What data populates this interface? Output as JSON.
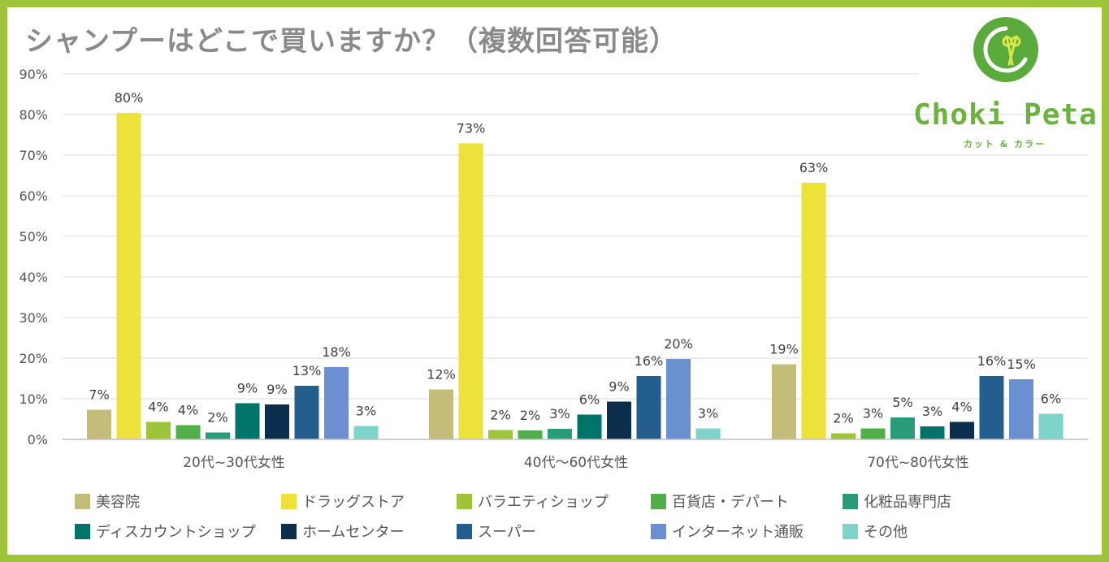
{
  "chart_data": {
    "type": "bar",
    "title": "シャンプーはどこで買いますか？（複数回答可能）",
    "categories": [
      "20代~30代女性",
      "40代～60代女性",
      "70代~80代女性"
    ],
    "ylim": [
      0,
      90
    ],
    "yticks": [
      "0%",
      "10%",
      "20%",
      "30%",
      "40%",
      "50%",
      "60%",
      "70%",
      "80%",
      "90%"
    ],
    "grid": true,
    "legend_position": "bottom",
    "series": [
      {
        "name": "美容院",
        "color": "#c4bd7a",
        "values": [
          7,
          12,
          19
        ],
        "labels": [
          "7%",
          "12%",
          "19%"
        ],
        "heights": [
          7.3,
          12.3,
          18.5
        ]
      },
      {
        "name": "ドラッグストア",
        "color": "#ede23a",
        "values": [
          80,
          73,
          63
        ],
        "labels": [
          "80%",
          "73%",
          "63%"
        ],
        "heights": [
          80.4,
          72.9,
          63.2
        ]
      },
      {
        "name": "バラエティショップ",
        "color": "#9dc43a",
        "values": [
          4,
          2,
          2
        ],
        "labels": [
          "4%",
          "2%",
          "2%"
        ],
        "heights": [
          4.3,
          2.3,
          1.5
        ]
      },
      {
        "name": "百貨店・デパート",
        "color": "#4fb04a",
        "values": [
          4,
          2,
          3
        ],
        "labels": [
          "4%",
          "2%",
          "3%"
        ],
        "heights": [
          3.5,
          2.2,
          2.7
        ]
      },
      {
        "name": "化粧品専門店",
        "color": "#2a9a78",
        "values": [
          2,
          3,
          5
        ],
        "labels": [
          "2%",
          "3%",
          "5%"
        ],
        "heights": [
          1.7,
          2.6,
          5.4
        ]
      },
      {
        "name": "ディスカウントショップ",
        "color": "#007469",
        "values": [
          9,
          6,
          3
        ],
        "labels": [
          "9%",
          "6%",
          "3%"
        ],
        "heights": [
          8.9,
          6.1,
          3.2
        ]
      },
      {
        "name": "ホームセンター",
        "color": "#0c2e4d",
        "values": [
          9,
          9,
          4
        ],
        "labels": [
          "9%",
          "9%",
          "4%"
        ],
        "heights": [
          8.6,
          9.3,
          4.3
        ]
      },
      {
        "name": "スーパー",
        "color": "#245e8f",
        "values": [
          13,
          16,
          16
        ],
        "labels": [
          "13%",
          "16%",
          "16%"
        ],
        "heights": [
          13.2,
          15.6,
          15.6
        ]
      },
      {
        "name": "インターネット通販",
        "color": "#6a90d2",
        "values": [
          18,
          20,
          15
        ],
        "labels": [
          "18%",
          "20%",
          "15%"
        ],
        "heights": [
          17.8,
          19.8,
          14.8
        ]
      },
      {
        "name": "その他",
        "color": "#7ed3cb",
        "values": [
          3,
          3,
          6
        ],
        "labels": [
          "3%",
          "3%",
          "6%"
        ],
        "heights": [
          3.3,
          2.7,
          6.3
        ]
      }
    ]
  },
  "logo": {
    "name": "Choki Peta",
    "subtitle": "カット & カラー"
  },
  "colors": {
    "border": "#9dc43a",
    "title": "#8a8a8a",
    "logo": "#6bb23f"
  }
}
